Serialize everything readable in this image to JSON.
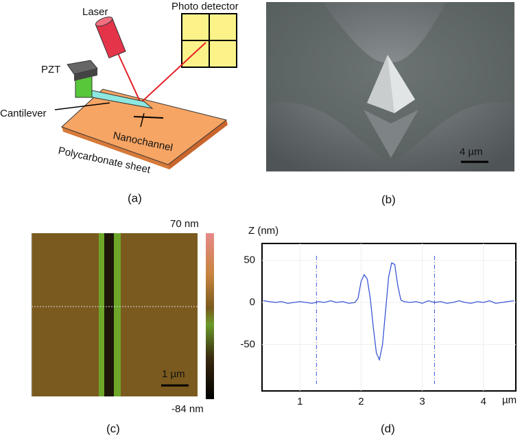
{
  "panel_a": {
    "laser": "Laser",
    "photo_detector": "Photo detector",
    "pzt": "PZT",
    "cantilever": "Cantilever",
    "nanochannel": "Nanochannel",
    "sheet": "Polycarbonate sheet",
    "label": "(a)"
  },
  "panel_b": {
    "scale": "4 µm",
    "label": "(b)"
  },
  "panel_c": {
    "colorbar_max": "70 nm",
    "colorbar_min": "-84 nm",
    "scale": "1 µm",
    "label": "(c)"
  },
  "panel_d": {
    "label": "(d)"
  },
  "chart_data": {
    "type": "line",
    "y_label": "Z (nm)",
    "x_unit": "µm",
    "x": [
      0.4,
      0.5,
      0.6,
      0.7,
      0.8,
      0.9,
      1.0,
      1.1,
      1.2,
      1.3,
      1.4,
      1.5,
      1.6,
      1.7,
      1.8,
      1.9,
      1.95,
      2.0,
      2.05,
      2.1,
      2.15,
      2.2,
      2.25,
      2.3,
      2.35,
      2.4,
      2.45,
      2.5,
      2.55,
      2.6,
      2.65,
      2.7,
      2.8,
      2.9,
      3.0,
      3.1,
      3.2,
      3.3,
      3.4,
      3.5,
      3.6,
      3.7,
      3.8,
      3.9,
      4.0,
      4.1,
      4.2,
      4.3,
      4.4,
      4.5
    ],
    "series": [
      {
        "color": "#3a56d4",
        "values": [
          2,
          1,
          0,
          1,
          -1,
          0,
          1,
          0,
          -1,
          1,
          0,
          2,
          0,
          1,
          -1,
          0,
          5,
          25,
          33,
          28,
          5,
          -30,
          -60,
          -68,
          -50,
          -10,
          30,
          47,
          45,
          20,
          3,
          1,
          0,
          1,
          -1,
          2,
          0,
          1,
          -1,
          0,
          2,
          0,
          -1,
          1,
          0,
          2,
          -1,
          0,
          1,
          2
        ]
      }
    ],
    "markers": [
      1.27,
      3.2
    ],
    "xlim": [
      0.38,
      4.53
    ],
    "ylim": [
      -105,
      70
    ],
    "xticks": [
      1,
      2,
      3,
      4
    ],
    "yticks": [
      -50,
      0,
      50
    ],
    "grid": true
  }
}
